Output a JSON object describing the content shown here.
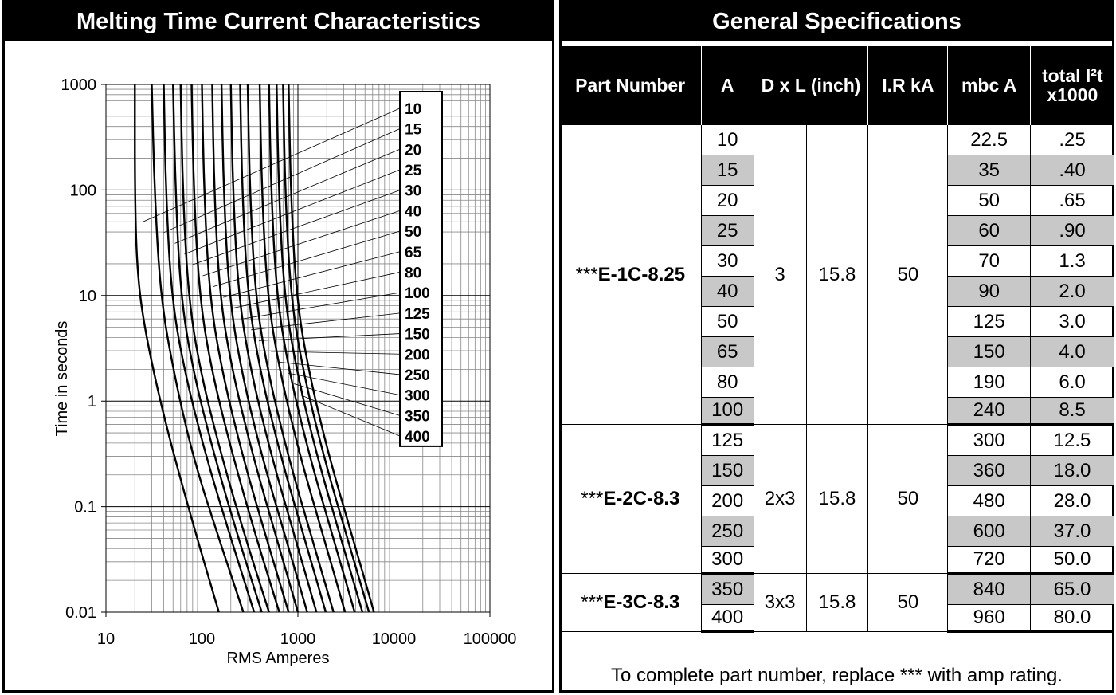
{
  "chart_data": {
    "type": "line",
    "title": "Melting Time Current Characteristics",
    "xlabel": "RMS Amperes",
    "ylabel": "Time in seconds",
    "x_scale": "log",
    "y_scale": "log",
    "xlim": [
      10,
      100000
    ],
    "ylim": [
      0.01,
      1000
    ],
    "x_ticks": [
      "10",
      "100",
      "1000",
      "10000",
      "100000"
    ],
    "y_ticks": [
      "0.01",
      "0.1",
      "1",
      "10",
      "100",
      "1000"
    ],
    "grid": true,
    "legend": "right-inside",
    "series": [
      {
        "name": "10",
        "x": [
          20,
          20,
          21,
          25,
          40,
          80,
          150
        ],
        "y": [
          1000,
          100,
          18,
          5,
          0.7,
          0.07,
          0.01
        ]
      },
      {
        "name": "15",
        "x": [
          30,
          32,
          37,
          50,
          80,
          150,
          270
        ],
        "y": [
          1000,
          100,
          10,
          2,
          0.3,
          0.05,
          0.01
        ]
      },
      {
        "name": "20",
        "x": [
          40,
          42,
          48,
          65,
          110,
          200,
          350
        ],
        "y": [
          1000,
          100,
          10,
          2,
          0.3,
          0.05,
          0.01
        ]
      },
      {
        "name": "25",
        "x": [
          50,
          53,
          60,
          80,
          135,
          240,
          420
        ],
        "y": [
          1000,
          100,
          10,
          2,
          0.3,
          0.05,
          0.01
        ]
      },
      {
        "name": "30",
        "x": [
          60,
          63,
          72,
          95,
          160,
          285,
          500
        ],
        "y": [
          1000,
          100,
          10,
          2,
          0.3,
          0.05,
          0.01
        ]
      },
      {
        "name": "40",
        "x": [
          78,
          82,
          94,
          125,
          210,
          370,
          640
        ],
        "y": [
          1000,
          100,
          10,
          2,
          0.3,
          0.05,
          0.01
        ]
      },
      {
        "name": "50",
        "x": [
          100,
          105,
          120,
          160,
          265,
          470,
          800
        ],
        "y": [
          1000,
          100,
          10,
          2,
          0.3,
          0.05,
          0.01
        ]
      },
      {
        "name": "65",
        "x": [
          128,
          134,
          153,
          205,
          340,
          600,
          1000
        ],
        "y": [
          1000,
          100,
          10,
          2,
          0.3,
          0.05,
          0.01
        ]
      },
      {
        "name": "80",
        "x": [
          160,
          168,
          192,
          255,
          420,
          750,
          1250
        ],
        "y": [
          1000,
          100,
          10,
          2,
          0.3,
          0.05,
          0.01
        ]
      },
      {
        "name": "100",
        "x": [
          200,
          210,
          240,
          320,
          530,
          940,
          1560
        ],
        "y": [
          1000,
          100,
          10,
          2,
          0.3,
          0.05,
          0.01
        ]
      },
      {
        "name": "125",
        "x": [
          250,
          262,
          300,
          400,
          660,
          1170,
          1950
        ],
        "y": [
          1000,
          100,
          10,
          2,
          0.3,
          0.05,
          0.01
        ]
      },
      {
        "name": "150",
        "x": [
          300,
          315,
          360,
          480,
          790,
          1400,
          2350
        ],
        "y": [
          1000,
          100,
          10,
          2,
          0.3,
          0.05,
          0.01
        ]
      },
      {
        "name": "200",
        "x": [
          400,
          420,
          480,
          640,
          1050,
          1870,
          3100
        ],
        "y": [
          1000,
          100,
          10,
          2,
          0.3,
          0.05,
          0.01
        ]
      },
      {
        "name": "250",
        "x": [
          500,
          525,
          600,
          800,
          1320,
          2340,
          3900
        ],
        "y": [
          1000,
          100,
          10,
          2,
          0.3,
          0.05,
          0.01
        ]
      },
      {
        "name": "300",
        "x": [
          600,
          630,
          720,
          960,
          1580,
          2800,
          4700
        ],
        "y": [
          1000,
          100,
          10,
          2,
          0.3,
          0.05,
          0.01
        ]
      },
      {
        "name": "350",
        "x": [
          700,
          735,
          840,
          1120,
          1850,
          3270,
          5500
        ],
        "y": [
          1000,
          100,
          10,
          2,
          0.3,
          0.05,
          0.01
        ]
      },
      {
        "name": "400",
        "x": [
          800,
          840,
          960,
          1280,
          2100,
          3740,
          6200
        ],
        "y": [
          1000,
          100,
          10,
          2,
          0.3,
          0.05,
          0.01
        ]
      }
    ]
  },
  "spec": {
    "title": "General Specifications",
    "headers": [
      "Part Number",
      "A",
      "D x L (inch)",
      "I.R kA",
      "mbc A",
      "total I²t x1000"
    ],
    "groups": [
      {
        "stars": "***",
        "part": "E-1C-8.25",
        "dxl": "3",
        "length": "15.8",
        "ir": "50",
        "rows": [
          {
            "a": "10",
            "mbc": "22.5",
            "i2t": ".25"
          },
          {
            "a": "15",
            "mbc": "35",
            "i2t": ".40"
          },
          {
            "a": "20",
            "mbc": "50",
            "i2t": ".65"
          },
          {
            "a": "25",
            "mbc": "60",
            "i2t": ".90"
          },
          {
            "a": "30",
            "mbc": "70",
            "i2t": "1.3"
          },
          {
            "a": "40",
            "mbc": "90",
            "i2t": "2.0"
          },
          {
            "a": "50",
            "mbc": "125",
            "i2t": "3.0"
          },
          {
            "a": "65",
            "mbc": "150",
            "i2t": "4.0"
          },
          {
            "a": "80",
            "mbc": "190",
            "i2t": "6.0"
          },
          {
            "a": "100",
            "mbc": "240",
            "i2t": "8.5"
          }
        ]
      },
      {
        "stars": "***",
        "part": "E-2C-8.3",
        "dxl": "2x3",
        "length": "15.8",
        "ir": "50",
        "rows": [
          {
            "a": "125",
            "mbc": "300",
            "i2t": "12.5"
          },
          {
            "a": "150",
            "mbc": "360",
            "i2t": "18.0"
          },
          {
            "a": "200",
            "mbc": "480",
            "i2t": "28.0"
          },
          {
            "a": "250",
            "mbc": "600",
            "i2t": "37.0"
          },
          {
            "a": "300",
            "mbc": "720",
            "i2t": "50.0"
          }
        ]
      },
      {
        "stars": "***",
        "part": "E-3C-8.3",
        "dxl": "3x3",
        "length": "15.8",
        "ir": "50",
        "rows": [
          {
            "a": "350",
            "mbc": "840",
            "i2t": "65.0"
          },
          {
            "a": "400",
            "mbc": "960",
            "i2t": "80.0"
          }
        ]
      }
    ],
    "note": "To complete part number, replace *** with amp rating."
  }
}
